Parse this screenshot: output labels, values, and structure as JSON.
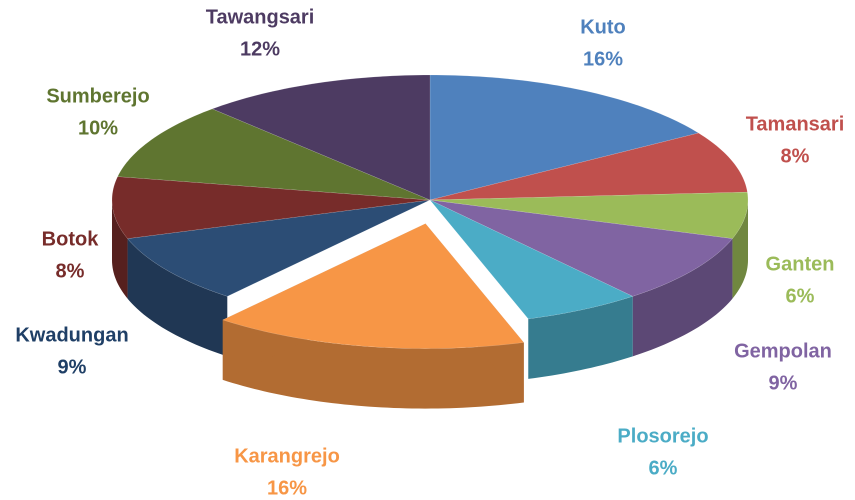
{
  "chart_data": {
    "type": "pie3d",
    "categories": [
      "Kuto",
      "Tamansari",
      "Ganten",
      "Gempolan",
      "Plosorejo",
      "Karangrejo",
      "Kwadungan",
      "Botok",
      "Sumberejo",
      "Tawangsari"
    ],
    "values": [
      16,
      8,
      6,
      9,
      6,
      16,
      9,
      8,
      10,
      12
    ],
    "value_labels": [
      "16%",
      "8%",
      "6%",
      "9%",
      "6%",
      "16%",
      "9%",
      "8%",
      "10%",
      "12%"
    ],
    "colors": [
      "#4f81bd",
      "#c0504d",
      "#9bbb59",
      "#8064a2",
      "#4bacc6",
      "#f79646",
      "#2c4d75",
      "#772c2a",
      "#5f7530",
      "#4d3b62"
    ],
    "label_colors": [
      "#4f81bd",
      "#c0504d",
      "#9bbb59",
      "#8064a2",
      "#4bacc6",
      "#f79646",
      "#1f3f66",
      "#772c2a",
      "#5f7530",
      "#4d3b62"
    ],
    "exploded": [
      5
    ]
  }
}
